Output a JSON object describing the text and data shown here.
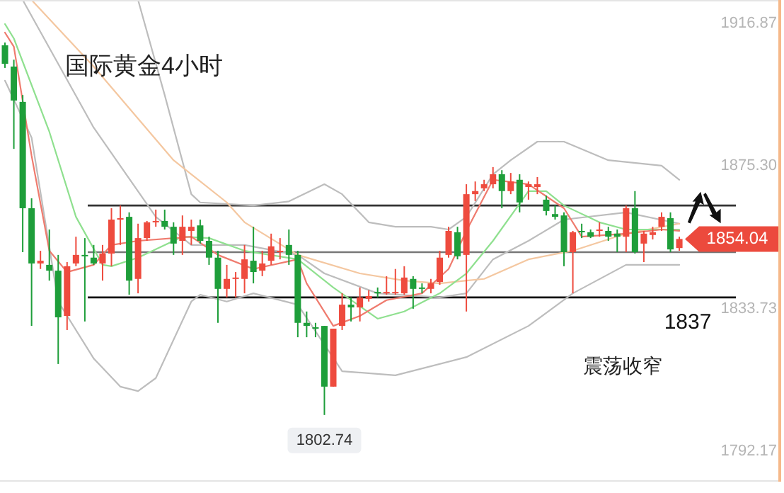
{
  "chart_data": {
    "type": "candlestick",
    "title": "国际黄金4小时",
    "categories": [
      null,
      null,
      null,
      null,
      null,
      null,
      null,
      null,
      null,
      null,
      null,
      null,
      null,
      null,
      null,
      null,
      null,
      null,
      null,
      null,
      null,
      null,
      null,
      null,
      null,
      null,
      null,
      null,
      null,
      null,
      null,
      null,
      null,
      null,
      null,
      null,
      null,
      null,
      null,
      null,
      null,
      null,
      null,
      null,
      null,
      null,
      null,
      null,
      null,
      null,
      null,
      null,
      null,
      null,
      null,
      null,
      null,
      null,
      null,
      null,
      null,
      null,
      null,
      null,
      null,
      null,
      null,
      null,
      null,
      null,
      null,
      null,
      null,
      null,
      null,
      null,
      null
    ],
    "ohlc": [
      [
        1910.5,
        1911.3,
        1903.9,
        1905.1
      ],
      [
        1904.3,
        1906.3,
        1880.3,
        1894.4
      ],
      [
        1894.0,
        1896.0,
        1850.2,
        1863.0
      ],
      [
        1863.0,
        1865.9,
        1828.7,
        1846.9
      ],
      [
        1846.9,
        1850.6,
        1845.3,
        1847.7
      ],
      [
        1846.5,
        1856.8,
        1841.9,
        1844.8
      ],
      [
        1844.8,
        1849.4,
        1817.6,
        1831.2
      ],
      [
        1831.6,
        1847.3,
        1827.5,
        1846.1
      ],
      [
        1846.9,
        1854.7,
        1846.1,
        1849.4
      ],
      [
        1849.4,
        1854.3,
        1830.0,
        1849.0
      ],
      [
        1848.6,
        1852.3,
        1846.5,
        1846.9
      ],
      [
        1846.9,
        1852.3,
        1841.9,
        1849.8
      ],
      [
        1849.8,
        1863.0,
        1846.1,
        1859.7
      ],
      [
        1859.7,
        1863.8,
        1852.3,
        1860.1
      ],
      [
        1860.5,
        1861.8,
        1837.8,
        1841.9
      ],
      [
        1842.4,
        1858.5,
        1838.2,
        1854.3
      ],
      [
        1854.3,
        1859.3,
        1853.5,
        1858.9
      ],
      [
        1858.9,
        1862.6,
        1857.6,
        1859.3
      ],
      [
        1859.3,
        1862.6,
        1856.8,
        1857.6
      ],
      [
        1857.6,
        1858.9,
        1849.4,
        1852.7
      ],
      [
        1853.5,
        1860.9,
        1849.4,
        1857.6
      ],
      [
        1856.4,
        1859.7,
        1852.3,
        1857.6
      ],
      [
        1858.0,
        1859.7,
        1852.7,
        1853.5
      ],
      [
        1853.5,
        1854.7,
        1846.5,
        1848.6
      ],
      [
        1848.6,
        1850.6,
        1829.6,
        1839.5
      ],
      [
        1839.5,
        1846.5,
        1837.0,
        1842.4
      ],
      [
        1842.4,
        1844.4,
        1837.0,
        1842.8
      ],
      [
        1842.4,
        1852.3,
        1838.2,
        1848.1
      ],
      [
        1847.7,
        1857.6,
        1841.1,
        1844.4
      ],
      [
        1844.8,
        1850.6,
        1843.2,
        1846.9
      ],
      [
        1847.7,
        1855.6,
        1846.5,
        1851.9
      ],
      [
        1850.2,
        1854.3,
        1848.1,
        1850.6
      ],
      [
        1852.3,
        1856.8,
        1846.5,
        1849.4
      ],
      [
        1849.4,
        1850.6,
        1825.4,
        1829.6
      ],
      [
        1829.6,
        1832.9,
        1825.4,
        1828.7
      ],
      [
        1828.3,
        1829.6,
        1825.4,
        1827.9
      ],
      [
        1828.7,
        1828.7,
        1802.74,
        1811.0
      ],
      [
        1811.0,
        1827.9,
        1811.0,
        1827.9
      ],
      [
        1828.7,
        1838.2,
        1827.5,
        1834.9
      ],
      [
        1834.9,
        1837.0,
        1830.0,
        1834.1
      ],
      [
        1834.1,
        1839.9,
        1830.0,
        1837.0
      ],
      [
        1836.6,
        1839.1,
        1835.8,
        1837.4
      ],
      [
        1838.6,
        1839.9,
        1837.0,
        1838.2
      ],
      [
        1838.2,
        1843.2,
        1837.8,
        1838.6
      ],
      [
        1838.2,
        1845.3,
        1837.8,
        1838.6
      ],
      [
        1838.2,
        1846.1,
        1837.8,
        1842.8
      ],
      [
        1842.4,
        1843.2,
        1833.7,
        1839.5
      ],
      [
        1839.9,
        1841.1,
        1838.2,
        1839.5
      ],
      [
        1839.5,
        1842.4,
        1838.2,
        1841.1
      ],
      [
        1841.5,
        1850.6,
        1840.7,
        1848.6
      ],
      [
        1849.4,
        1857.6,
        1848.6,
        1856.4
      ],
      [
        1856.0,
        1857.6,
        1848.1,
        1849.0
      ],
      [
        1849.4,
        1870.0,
        1832.9,
        1867.1
      ],
      [
        1867.1,
        1870.8,
        1865.1,
        1868.0
      ],
      [
        1868.8,
        1871.3,
        1868.0,
        1870.0
      ],
      [
        1870.0,
        1875.0,
        1868.8,
        1872.9
      ],
      [
        1872.9,
        1874.1,
        1863.0,
        1868.0
      ],
      [
        1868.0,
        1873.3,
        1867.1,
        1870.8
      ],
      [
        1871.3,
        1872.9,
        1861.8,
        1864.7
      ],
      [
        1869.2,
        1870.8,
        1865.5,
        1870.0
      ],
      [
        1869.2,
        1872.1,
        1867.1,
        1870.0
      ],
      [
        1865.5,
        1866.7,
        1860.9,
        1862.2
      ],
      [
        1861.3,
        1863.8,
        1859.7,
        1860.5
      ],
      [
        1860.9,
        1861.8,
        1846.1,
        1850.2
      ],
      [
        1850.2,
        1856.4,
        1838.2,
        1856.0
      ],
      [
        1856.4,
        1858.5,
        1854.3,
        1856.0
      ],
      [
        1856.0,
        1856.8,
        1854.3,
        1854.7
      ],
      [
        1856.4,
        1858.9,
        1854.7,
        1856.8
      ],
      [
        1856.4,
        1857.6,
        1853.5,
        1854.7
      ],
      [
        1855.6,
        1856.8,
        1850.2,
        1854.7
      ],
      [
        1854.7,
        1863.8,
        1850.2,
        1863.0
      ],
      [
        1863.0,
        1868.0,
        1849.8,
        1850.2
      ],
      [
        1852.7,
        1856.4,
        1847.3,
        1855.6
      ],
      [
        1855.2,
        1857.6,
        1853.9,
        1856.0
      ],
      [
        1857.6,
        1861.8,
        1856.4,
        1860.5
      ],
      [
        1860.1,
        1861.8,
        1850.2,
        1851.0
      ],
      [
        1851.4,
        1854.7,
        1850.6,
        1854.04
      ]
    ],
    "colors": [
      "#1e9e3a",
      "#1e9e3a",
      "#1e9e3a",
      "#1e9e3a",
      "#ee4b3e",
      "#1e9e3a",
      "#1e9e3a",
      "#ee4b3e",
      "#ee4b3e",
      "#1e9e3a",
      "#1e9e3a",
      "#ee4b3e",
      "#ee4b3e",
      "#ee4b3e",
      "#1e9e3a",
      "#ee4b3e",
      "#ee4b3e",
      "#ee4b3e",
      "#1e9e3a",
      "#1e9e3a",
      "#ee4b3e",
      "#ee4b3e",
      "#1e9e3a",
      "#1e9e3a",
      "#1e9e3a",
      "#ee4b3e",
      "#ee4b3e",
      "#ee4b3e",
      "#1e9e3a",
      "#ee4b3e",
      "#ee4b3e",
      "#ee4b3e",
      "#1e9e3a",
      "#1e9e3a",
      "#1e9e3a",
      "#1e9e3a",
      "#1e9e3a",
      "#ee4b3e",
      "#ee4b3e",
      "#1e9e3a",
      "#ee4b3e",
      "#ee4b3e",
      "#1e9e3a",
      "#ee4b3e",
      "#ee4b3e",
      "#ee4b3e",
      "#1e9e3a",
      "#1e9e3a",
      "#ee4b3e",
      "#ee4b3e",
      "#ee4b3e",
      "#1e9e3a",
      "#ee4b3e",
      "#ee4b3e",
      "#ee4b3e",
      "#ee4b3e",
      "#1e9e3a",
      "#ee4b3e",
      "#1e9e3a",
      "#ee4b3e",
      "#ee4b3e",
      "#1e9e3a",
      "#1e9e3a",
      "#1e9e3a",
      "#ee4b3e",
      "#1e9e3a",
      "#1e9e3a",
      "#ee4b3e",
      "#1e9e3a",
      "#1e9e3a",
      "#ee4b3e",
      "#1e9e3a",
      "#ee4b3e",
      "#ee4b3e",
      "#ee4b3e",
      "#1e9e3a",
      "#ee4b3e"
    ],
    "series": [
      {
        "type": "line",
        "color": "#bdbdbd",
        "values": [
          null,
          null,
          null,
          null,
          null,
          null,
          null,
          null,
          null,
          null,
          null,
          null,
          null,
          null,
          null,
          1923.7,
          null,
          null,
          1896.0,
          null,
          null,
          1867.1,
          1864.7,
          null,
          null,
          null,
          null,
          null,
          1863.8,
          null,
          null,
          null,
          1865.0,
          null,
          null,
          null,
          1870.0,
          null,
          1867.1,
          null,
          null,
          1858.9,
          null,
          null,
          1857.6,
          null,
          null,
          null,
          1857.6,
          null,
          1856.8,
          null,
          1860.5,
          null,
          null,
          1872.9,
          null,
          1877.0,
          null,
          null,
          1882.4,
          null,
          null,
          1882.4,
          null,
          null,
          null,
          null,
          1877.0,
          null,
          null,
          null,
          null,
          null,
          1875.4,
          null,
          1871.3
        ]
      },
      {
        "type": "line",
        "color": "#bdbdbd",
        "values": [
          null,
          null,
          1923.7,
          null,
          null,
          null,
          null,
          null,
          null,
          null,
          1886.5,
          null,
          null,
          null,
          null,
          null,
          null,
          1860.5,
          null,
          null,
          null,
          1852.3,
          null,
          null,
          1852.3,
          null,
          null,
          1852.3,
          null,
          null,
          null,
          null,
          null,
          1849.4,
          null,
          null,
          1844.0,
          null,
          null,
          null,
          null,
          null,
          1838.2,
          null,
          null,
          null,
          null,
          null,
          null,
          1837.0,
          null,
          null,
          1838.2,
          null,
          null,
          1848.1,
          null,
          null,
          null,
          1853.5,
          null,
          null,
          null,
          1859.7,
          null,
          null,
          null,
          null,
          null,
          null,
          1861.8,
          null,
          null,
          null,
          null,
          null,
          1858.5
        ]
      },
      {
        "type": "line",
        "color": "#bdbdbd",
        "values": [
          1900.2,
          null,
          null,
          1883.6,
          null,
          null,
          1835.8,
          null,
          null,
          null,
          1819.2,
          null,
          null,
          1811.0,
          null,
          1809.7,
          null,
          1813.5,
          null,
          null,
          null,
          1835.8,
          1837.8,
          null,
          null,
          1835.8,
          null,
          null,
          1838.2,
          null,
          null,
          null,
          null,
          1834.9,
          null,
          null,
          null,
          null,
          1815.5,
          null,
          null,
          null,
          null,
          null,
          1814.3,
          null,
          null,
          null,
          null,
          null,
          null,
          null,
          1819.6,
          null,
          null,
          null,
          null,
          null,
          null,
          1828.7,
          null,
          null,
          null,
          null,
          1838.2,
          null,
          null,
          null,
          null,
          null,
          1846.5,
          null,
          null,
          null,
          null,
          null,
          1846.5
        ]
      },
      {
        "type": "line",
        "color": "#f4c7a0",
        "values": [
          null,
          null,
          null,
          1923.7,
          null,
          null,
          null,
          null,
          null,
          null,
          1904.3,
          null,
          null,
          null,
          null,
          null,
          null,
          null,
          null,
          1877.0,
          null,
          null,
          null,
          null,
          null,
          1864.7,
          null,
          1858.9,
          null,
          null,
          null,
          null,
          null,
          1849.4,
          null,
          null,
          null,
          null,
          null,
          null,
          1844.0,
          null,
          null,
          null,
          null,
          1841.9,
          null,
          null,
          null,
          1841.1,
          null,
          null,
          1841.9,
          null,
          1842.4,
          null,
          null,
          null,
          null,
          1848.1,
          null,
          null,
          null,
          null,
          1850.6,
          null,
          null,
          null,
          null,
          null,
          1855.6,
          null,
          null,
          null,
          null,
          null,
          1858.5
        ]
      },
      {
        "type": "line",
        "color": "#8fe08f",
        "values": [
          1916.7,
          1912.5,
          null,
          null,
          null,
          1885.3,
          null,
          null,
          1860.5,
          null,
          null,
          1846.5,
          1846.1,
          null,
          null,
          1848.6,
          null,
          null,
          null,
          null,
          1854.7,
          null,
          null,
          1854.3,
          null,
          null,
          null,
          1850.6,
          null,
          null,
          null,
          null,
          null,
          1848.1,
          null,
          null,
          null,
          1839.9,
          null,
          null,
          null,
          null,
          1830.8,
          null,
          null,
          1832.9,
          null,
          null,
          null,
          1838.2,
          null,
          null,
          1844.0,
          null,
          null,
          1853.5,
          null,
          null,
          null,
          1868.0,
          null,
          1868.0,
          null,
          1863.8,
          null,
          null,
          null,
          1858.9,
          null,
          null,
          1856.8,
          null,
          null,
          null,
          null,
          null,
          1856.8
        ]
      },
      {
        "type": "line",
        "color": "#ef7b6e",
        "values": [
          1914.2,
          1910.1,
          null,
          1878.3,
          null,
          1850.6,
          null,
          1844.4,
          null,
          null,
          1846.5,
          null,
          1852.3,
          null,
          null,
          1853.5,
          null,
          null,
          null,
          null,
          null,
          1854.7,
          null,
          null,
          1849.4,
          null,
          null,
          null,
          1845.3,
          null,
          null,
          null,
          null,
          1848.1,
          1841.1,
          null,
          null,
          1828.7,
          null,
          null,
          1831.6,
          null,
          null,
          1836.2,
          null,
          null,
          null,
          1838.2,
          null,
          null,
          1845.3,
          null,
          1856.4,
          null,
          null,
          1871.3,
          null,
          null,
          null,
          1870.0,
          null,
          null,
          null,
          1863.0,
          null,
          1854.7,
          null,
          null,
          null,
          null,
          1855.6,
          null,
          null,
          null,
          1856.8,
          null,
          1856.4
        ]
      }
    ],
    "ylim": [
      1783.3,
      1923.7
    ],
    "yticks": [
      1916.87,
      {
        "value": 1875.3,
        "label": "1875.30"
      },
      1833.73,
      1792.17
    ],
    "ref_lines": [
      {
        "axis": "y",
        "value": 1863.8,
        "color": "#333333"
      },
      {
        "axis": "y",
        "value": 1850.2,
        "color": "#777777"
      },
      {
        "axis": "y",
        "value": 1837,
        "label": "1837",
        "color": "#111111"
      }
    ],
    "annotations": [
      "震荡收窄",
      {
        "text": "1802.74",
        "y": 1802.74
      },
      "1854.04"
    ]
  }
}
